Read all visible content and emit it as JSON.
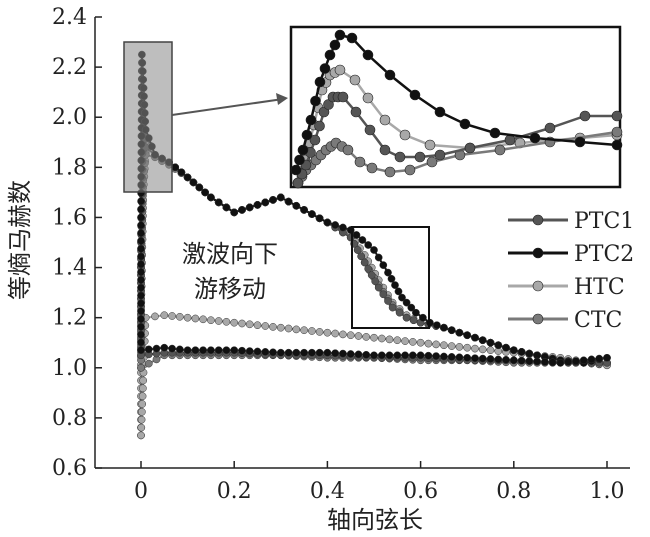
{
  "chart_data": {
    "type": "line",
    "xlabel": "轴向弦长",
    "ylabel": "等熵马赫数",
    "xlim": [
      -0.1,
      1.0
    ],
    "ylim": [
      0.6,
      2.4
    ],
    "xticks": [
      "0",
      "0.2",
      "0.4",
      "0.6",
      "0.8",
      "1.0"
    ],
    "yticks": [
      "0.6",
      "0.8",
      "1.0",
      "1.2",
      "1.4",
      "1.6",
      "1.8",
      "2.0",
      "2.2",
      "2.4"
    ],
    "legend_position": "right",
    "annotation": [
      "激波向下",
      "游移动"
    ],
    "colors": {
      "PTC1": "#555555",
      "PTC2": "#111111",
      "HTC": "#a8a8a8",
      "CTC": "#7a7a7a"
    },
    "series": [
      {
        "name": "PTC1",
        "suction": [
          [
            0,
            1.05
          ],
          [
            0,
            1.5
          ],
          [
            0.005,
            2.05
          ],
          [
            0.01,
            1.88
          ],
          [
            0.03,
            1.85
          ],
          [
            0.06,
            1.82
          ],
          [
            0.1,
            1.76
          ],
          [
            0.15,
            1.68
          ],
          [
            0.2,
            1.62
          ],
          [
            0.25,
            1.65
          ],
          [
            0.3,
            1.68
          ],
          [
            0.35,
            1.63
          ],
          [
            0.4,
            1.58
          ],
          [
            0.45,
            1.52
          ],
          [
            0.48,
            1.42
          ],
          [
            0.51,
            1.32
          ],
          [
            0.54,
            1.24
          ],
          [
            0.57,
            1.2
          ],
          [
            0.6,
            1.18
          ],
          [
            0.65,
            1.16
          ],
          [
            0.7,
            1.13
          ],
          [
            0.75,
            1.1
          ],
          [
            0.8,
            1.07
          ],
          [
            0.85,
            1.05
          ],
          [
            0.9,
            1.03
          ],
          [
            0.95,
            1.02
          ],
          [
            1.0,
            1.02
          ]
        ],
        "pressure": [
          [
            0,
            1.05
          ],
          [
            0.05,
            1.06
          ],
          [
            0.1,
            1.06
          ],
          [
            0.2,
            1.06
          ],
          [
            0.3,
            1.05
          ],
          [
            0.4,
            1.05
          ],
          [
            0.5,
            1.04
          ],
          [
            0.6,
            1.04
          ],
          [
            0.7,
            1.03
          ],
          [
            0.8,
            1.03
          ],
          [
            0.9,
            1.02
          ],
          [
            1.0,
            1.02
          ]
        ]
      },
      {
        "name": "PTC2",
        "suction": [
          [
            0,
            1.07
          ],
          [
            0,
            1.6
          ],
          [
            0.002,
            2.25
          ],
          [
            0.01,
            1.95
          ],
          [
            0.03,
            1.85
          ],
          [
            0.06,
            1.82
          ],
          [
            0.1,
            1.76
          ],
          [
            0.15,
            1.68
          ],
          [
            0.2,
            1.62
          ],
          [
            0.25,
            1.65
          ],
          [
            0.3,
            1.68
          ],
          [
            0.35,
            1.63
          ],
          [
            0.4,
            1.58
          ],
          [
            0.45,
            1.55
          ],
          [
            0.5,
            1.47
          ],
          [
            0.53,
            1.38
          ],
          [
            0.56,
            1.28
          ],
          [
            0.59,
            1.22
          ],
          [
            0.62,
            1.18
          ],
          [
            0.65,
            1.16
          ],
          [
            0.7,
            1.13
          ],
          [
            0.75,
            1.1
          ],
          [
            0.8,
            1.07
          ],
          [
            0.85,
            1.05
          ],
          [
            0.9,
            1.03
          ],
          [
            0.95,
            1.02
          ],
          [
            1.0,
            1.04
          ]
        ],
        "pressure": [
          [
            0,
            1.07
          ],
          [
            0.05,
            1.08
          ],
          [
            0.1,
            1.07
          ],
          [
            0.2,
            1.07
          ],
          [
            0.3,
            1.06
          ],
          [
            0.4,
            1.06
          ],
          [
            0.5,
            1.05
          ],
          [
            0.6,
            1.05
          ],
          [
            0.7,
            1.04
          ],
          [
            0.8,
            1.03
          ],
          [
            0.9,
            1.02
          ],
          [
            1.0,
            1.04
          ]
        ]
      },
      {
        "name": "HTC",
        "suction": [
          [
            0,
            0.73
          ],
          [
            0,
            1.2
          ],
          [
            0.005,
            1.7
          ],
          [
            0.012,
            1.92
          ],
          [
            0.03,
            1.85
          ],
          [
            0.06,
            1.82
          ],
          [
            0.1,
            1.76
          ],
          [
            0.15,
            1.68
          ],
          [
            0.2,
            1.62
          ],
          [
            0.25,
            1.65
          ],
          [
            0.3,
            1.68
          ],
          [
            0.35,
            1.63
          ],
          [
            0.4,
            1.58
          ],
          [
            0.45,
            1.53
          ],
          [
            0.48,
            1.45
          ],
          [
            0.51,
            1.35
          ],
          [
            0.54,
            1.26
          ],
          [
            0.57,
            1.21
          ],
          [
            0.6,
            1.18
          ],
          [
            0.65,
            1.16
          ],
          [
            0.7,
            1.13
          ],
          [
            0.75,
            1.1
          ],
          [
            0.8,
            1.07
          ],
          [
            0.85,
            1.05
          ],
          [
            0.9,
            1.03
          ],
          [
            0.95,
            1.02
          ],
          [
            1.0,
            1.01
          ]
        ],
        "pressure": [
          [
            0,
            0.73
          ],
          [
            0.01,
            1.2
          ],
          [
            0.05,
            1.21
          ],
          [
            0.1,
            1.2
          ],
          [
            0.2,
            1.18
          ],
          [
            0.3,
            1.16
          ],
          [
            0.4,
            1.14
          ],
          [
            0.5,
            1.12
          ],
          [
            0.6,
            1.1
          ],
          [
            0.7,
            1.08
          ],
          [
            0.8,
            1.06
          ],
          [
            0.9,
            1.04
          ],
          [
            1.0,
            1.01
          ]
        ]
      },
      {
        "name": "CTC",
        "suction": [
          [
            0,
            1.0
          ],
          [
            0,
            1.4
          ],
          [
            0.005,
            1.75
          ],
          [
            0.01,
            1.85
          ],
          [
            0.03,
            1.84
          ],
          [
            0.06,
            1.81
          ],
          [
            0.1,
            1.76
          ],
          [
            0.15,
            1.68
          ],
          [
            0.2,
            1.62
          ],
          [
            0.25,
            1.65
          ],
          [
            0.3,
            1.68
          ],
          [
            0.35,
            1.63
          ],
          [
            0.4,
            1.58
          ],
          [
            0.45,
            1.52
          ],
          [
            0.48,
            1.42
          ],
          [
            0.51,
            1.33
          ],
          [
            0.54,
            1.25
          ],
          [
            0.57,
            1.2
          ],
          [
            0.6,
            1.18
          ],
          [
            0.65,
            1.16
          ],
          [
            0.7,
            1.13
          ],
          [
            0.75,
            1.1
          ],
          [
            0.8,
            1.07
          ],
          [
            0.85,
            1.05
          ],
          [
            0.9,
            1.03
          ],
          [
            0.95,
            1.02
          ],
          [
            1.0,
            1.02
          ]
        ],
        "pressure": [
          [
            0,
            1.0
          ],
          [
            0.05,
            1.05
          ],
          [
            0.1,
            1.05
          ],
          [
            0.2,
            1.05
          ],
          [
            0.3,
            1.05
          ],
          [
            0.4,
            1.04
          ],
          [
            0.5,
            1.04
          ],
          [
            0.6,
            1.03
          ],
          [
            0.7,
            1.03
          ],
          [
            0.8,
            1.02
          ],
          [
            0.9,
            1.02
          ],
          [
            1.0,
            1.02
          ]
        ]
      }
    ]
  }
}
